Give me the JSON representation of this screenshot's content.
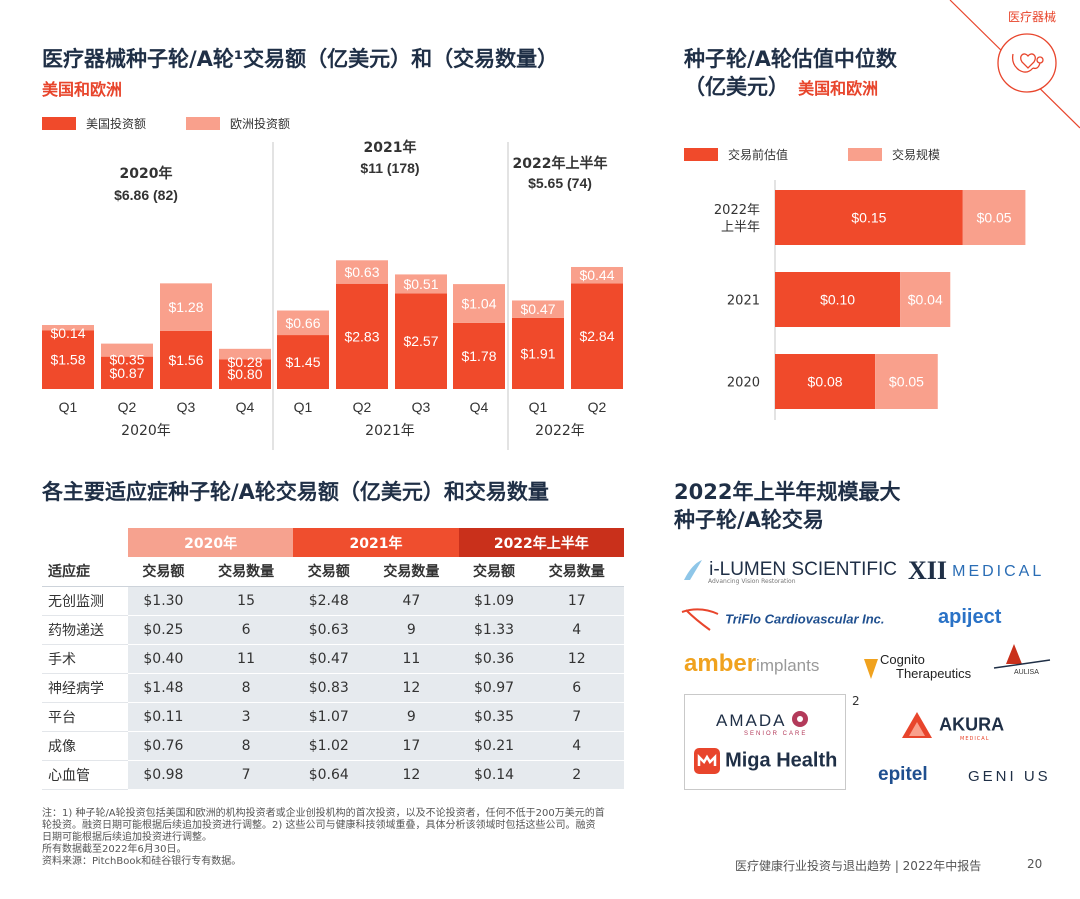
{
  "corner_label": "医疗器械",
  "left_chart": {
    "title": "医疗器械种子轮/A轮¹交易额（亿美元）和（交易数量）",
    "subtitle": "美国和欧洲",
    "legend": [
      "美国投资额",
      "欧洲投资额"
    ]
  },
  "right_chart": {
    "title_line1": "种子轮/A轮估值中位数",
    "title_line2": "（亿美元）",
    "subtitle": "美国和欧洲",
    "legend": [
      "交易前估值",
      "交易规模"
    ]
  },
  "table_section": {
    "title": "各主要适应症种子轮/A轮交易额（亿美元）和交易数量",
    "years": [
      "2020年",
      "2021年",
      "2022年上半年"
    ],
    "headers": [
      "适应症",
      "交易额",
      "交易数量",
      "交易额",
      "交易数量",
      "交易额",
      "交易数量"
    ],
    "rows": [
      [
        "无创监测",
        "$1.30",
        "15",
        "$2.48",
        "47",
        "$1.09",
        "17"
      ],
      [
        "药物递送",
        "$0.25",
        "6",
        "$0.63",
        "9",
        "$1.33",
        "4"
      ],
      [
        "手术",
        "$0.40",
        "11",
        "$0.47",
        "11",
        "$0.36",
        "12"
      ],
      [
        "神经病学",
        "$1.48",
        "8",
        "$0.83",
        "12",
        "$0.97",
        "6"
      ],
      [
        "平台",
        "$0.11",
        "3",
        "$1.07",
        "9",
        "$0.35",
        "7"
      ],
      [
        "成像",
        "$0.76",
        "8",
        "$1.02",
        "17",
        "$0.21",
        "4"
      ],
      [
        "心血管",
        "$0.98",
        "7",
        "$0.64",
        "12",
        "$0.14",
        "2"
      ]
    ]
  },
  "logos_section": {
    "title_line1": "2022年上半年规模最大",
    "title_line2": "种子轮/A轮交易",
    "logos": {
      "ilumen": "i-LUMEN SCIENTIFIC",
      "ilumen_tag": "Advancing Vision Restoration",
      "xii": "XII",
      "xii_medical": "MEDICAL",
      "triflo": "TriFlo Cardiovascular Inc.",
      "apiject": "apiject",
      "amber1": "amber",
      "amber2": "implants",
      "cognito1": "Cognito",
      "cognito2": "Therapeutics",
      "aulisa": "AULISA",
      "amada": "AMADA",
      "amada_tag": "SENIOR CARE",
      "box_note": "2",
      "akura": "AKURA",
      "akura_tag": "MEDICAL",
      "miga": "Miga Health",
      "epitel": "epitel",
      "genixus": "GENI  US"
    }
  },
  "footnote": [
    "注：1) 种子轮/A轮投资包括美国和欧洲的机构投资者或企业创投机构的首次投资，以及不论投资者，任何不低于200万美元的首",
    "轮投资。融资日期可能根据后续追加投资进行调整。2) 这些公司与健康科技领域重叠，具体分析该领域时包括这些公司。融资",
    "日期可能根据后续追加投资进行调整。",
    "所有数据截至2022年6月30日。",
    "资料来源：PitchBook和硅谷银行专有数据。"
  ],
  "footer": {
    "report": "医疗健康行业投资与退出趋势 | 2022年中报告",
    "page": "20"
  },
  "colors": {
    "us": "#f04a2b",
    "eu": "#f9a08c",
    "title": "#1f2f46",
    "accent": "#e8452c",
    "y2020": "#f6a28f",
    "y2021": "#ef4e2e",
    "y2022": "#c9301b"
  },
  "chart_data": [
    {
      "type": "bar",
      "stacked": true,
      "categories": [
        "Q1",
        "Q2",
        "Q3",
        "Q4",
        "Q1",
        "Q2",
        "Q3",
        "Q4",
        "Q1",
        "Q2"
      ],
      "groups": [
        {
          "label": "2020年",
          "header_year": "2020年",
          "header_total": "$6.86 (82)"
        },
        {
          "label": "2021年",
          "header_year": "2021年",
          "header_total": "$11 (178)"
        },
        {
          "label": "2022年",
          "header_year": "2022年上半年",
          "header_total": "$5.65 (74)"
        }
      ],
      "series": [
        {
          "name": "美国投资额",
          "values": [
            1.58,
            0.87,
            1.56,
            0.8,
            1.45,
            2.83,
            2.57,
            1.78,
            1.91,
            2.84
          ]
        },
        {
          "name": "欧洲投资额",
          "values": [
            0.14,
            0.35,
            1.28,
            0.28,
            0.66,
            0.63,
            0.51,
            1.04,
            0.47,
            0.44
          ]
        }
      ]
    },
    {
      "type": "bar",
      "orientation": "horizontal",
      "stacked": true,
      "categories": [
        "2022年\n上半年",
        "2021",
        "2020"
      ],
      "series": [
        {
          "name": "交易前估值",
          "values": [
            0.15,
            0.1,
            0.08
          ]
        },
        {
          "name": "交易规模",
          "values": [
            0.05,
            0.04,
            0.05
          ]
        }
      ]
    }
  ]
}
